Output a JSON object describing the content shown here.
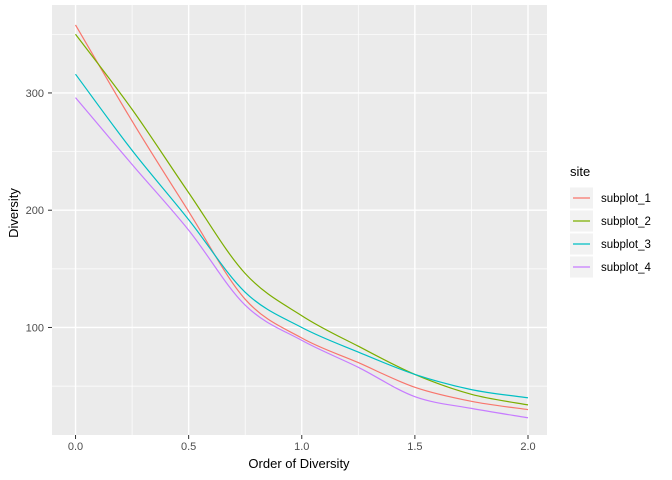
{
  "chart_data": {
    "type": "line",
    "title": "",
    "xlabel": "Order of Diversity",
    "ylabel": "Diversity",
    "x": [
      0,
      0.25,
      0.5,
      0.75,
      1.0,
      1.25,
      1.5,
      1.75,
      2.0
    ],
    "series": [
      {
        "name": "subplot_1",
        "color": "#F8766D",
        "values": [
          358,
          276,
          199,
          124,
          91,
          70,
          49,
          37,
          30
        ]
      },
      {
        "name": "subplot_2",
        "color": "#7CAE00",
        "values": [
          350,
          286,
          215,
          146,
          110,
          84,
          60,
          43,
          34
        ]
      },
      {
        "name": "subplot_3",
        "color": "#00BFC4",
        "values": [
          316,
          251,
          192,
          130,
          100,
          79,
          60,
          47,
          40
        ]
      },
      {
        "name": "subplot_4",
        "color": "#C77CFF",
        "values": [
          296,
          239,
          183,
          119,
          89,
          66,
          41,
          31,
          23
        ]
      }
    ],
    "x_ticks": [
      "0.0",
      "0.5",
      "1.0",
      "1.5",
      "2.0"
    ],
    "x_tick_values": [
      0,
      0.5,
      1.0,
      1.5,
      2.0
    ],
    "y_ticks": [
      "100",
      "200",
      "300"
    ],
    "y_tick_values": [
      100,
      200,
      300
    ],
    "x_minor_values": [
      0.25,
      0.75,
      1.25,
      1.75
    ],
    "y_minor_values": [
      50,
      150,
      250,
      350
    ],
    "xlim": [
      -0.104,
      2.084
    ],
    "ylim": [
      8.3,
      375
    ],
    "grid": true,
    "legend": {
      "title": "site",
      "position": "right",
      "entries": [
        "subplot_1",
        "subplot_2",
        "subplot_3",
        "subplot_4"
      ]
    },
    "colors": {
      "panel_background": "#EBEBEB",
      "grid_lines": "#FFFFFF",
      "legend_key_background": "#F2F2F2",
      "axis_tick_text": "#4d4d4d",
      "axis_tick_mark": "#333333",
      "axis_title_text": "#000000"
    }
  }
}
